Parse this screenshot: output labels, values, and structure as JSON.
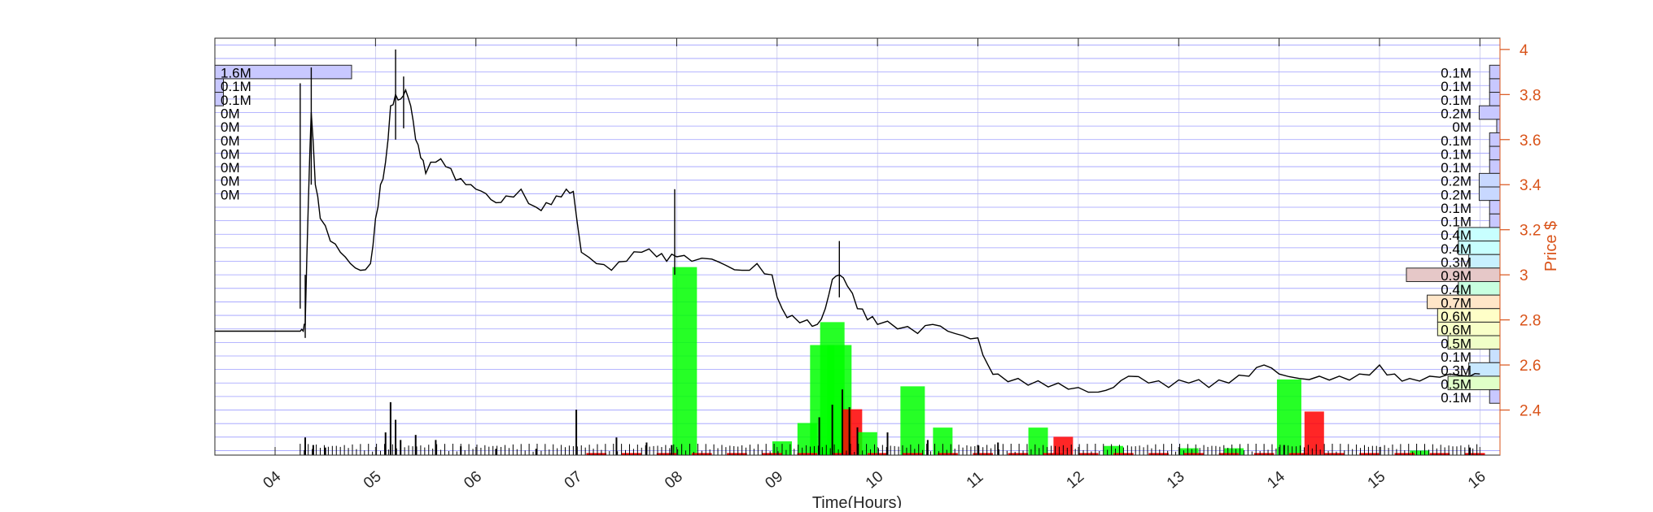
{
  "chart_data": {
    "type": "line",
    "xlabel": "Time(Hours)",
    "ylabel": "Price $",
    "xlim": [
      3.4,
      16.2
    ],
    "ylim": [
      2.2,
      4.05
    ],
    "x_ticks": [
      4,
      5,
      6,
      7,
      8,
      9,
      10,
      11,
      12,
      13,
      14,
      15,
      16
    ],
    "x_tick_labels": [
      "04",
      "05",
      "06",
      "07",
      "08",
      "09",
      "10",
      "11",
      "12",
      "13",
      "14",
      "15",
      "16"
    ],
    "y_ticks": [
      2.4,
      2.6,
      2.8,
      3.0,
      3.2,
      3.4,
      3.6,
      3.8,
      4.0
    ],
    "y_tick_labels": [
      "2.4",
      "2.6",
      "2.8",
      "3",
      "3.2",
      "3.4",
      "3.6",
      "3.8",
      "4"
    ],
    "grid": true,
    "colors": {
      "axis_right": "#d95319",
      "price": "#000000",
      "up_volume": "#00ff00",
      "down_volume": "#ff0000",
      "grid": "#8c8cff"
    },
    "price_series": [
      [
        3.4,
        2.75
      ],
      [
        4.25,
        2.75
      ],
      [
        4.28,
        2.75
      ],
      [
        4.3,
        2.78
      ],
      [
        4.33,
        3.3
      ],
      [
        4.36,
        3.72
      ],
      [
        4.4,
        3.4
      ],
      [
        4.45,
        3.25
      ],
      [
        4.55,
        3.15
      ],
      [
        4.65,
        3.1
      ],
      [
        4.75,
        3.05
      ],
      [
        4.85,
        3.02
      ],
      [
        4.95,
        3.05
      ],
      [
        5.0,
        3.25
      ],
      [
        5.05,
        3.4
      ],
      [
        5.1,
        3.5
      ],
      [
        5.15,
        3.75
      ],
      [
        5.2,
        3.8
      ],
      [
        5.25,
        3.78
      ],
      [
        5.3,
        3.82
      ],
      [
        5.35,
        3.75
      ],
      [
        5.4,
        3.6
      ],
      [
        5.45,
        3.52
      ],
      [
        5.5,
        3.45
      ],
      [
        5.6,
        3.5
      ],
      [
        5.7,
        3.48
      ],
      [
        5.8,
        3.42
      ],
      [
        5.9,
        3.4
      ],
      [
        6.0,
        3.38
      ],
      [
        6.1,
        3.36
      ],
      [
        6.2,
        3.32
      ],
      [
        6.3,
        3.35
      ],
      [
        6.45,
        3.38
      ],
      [
        6.6,
        3.3
      ],
      [
        6.7,
        3.32
      ],
      [
        6.8,
        3.35
      ],
      [
        6.9,
        3.38
      ],
      [
        6.97,
        3.37
      ],
      [
        7.05,
        3.1
      ],
      [
        7.2,
        3.05
      ],
      [
        7.35,
        3.02
      ],
      [
        7.5,
        3.06
      ],
      [
        7.65,
        3.1
      ],
      [
        7.8,
        3.08
      ],
      [
        7.9,
        3.06
      ],
      [
        8.0,
        3.08
      ],
      [
        8.15,
        3.06
      ],
      [
        8.35,
        3.07
      ],
      [
        8.5,
        3.04
      ],
      [
        8.65,
        3.02
      ],
      [
        8.8,
        3.05
      ],
      [
        8.95,
        3.0
      ],
      [
        9.05,
        2.85
      ],
      [
        9.15,
        2.82
      ],
      [
        9.3,
        2.8
      ],
      [
        9.4,
        2.78
      ],
      [
        9.48,
        2.85
      ],
      [
        9.55,
        2.98
      ],
      [
        9.62,
        3.0
      ],
      [
        9.7,
        2.95
      ],
      [
        9.8,
        2.85
      ],
      [
        9.9,
        2.8
      ],
      [
        10.0,
        2.78
      ],
      [
        10.2,
        2.76
      ],
      [
        10.4,
        2.74
      ],
      [
        10.55,
        2.78
      ],
      [
        10.7,
        2.75
      ],
      [
        10.85,
        2.73
      ],
      [
        11.0,
        2.72
      ],
      [
        11.1,
        2.6
      ],
      [
        11.2,
        2.56
      ],
      [
        11.4,
        2.54
      ],
      [
        11.6,
        2.53
      ],
      [
        11.8,
        2.52
      ],
      [
        12.0,
        2.5
      ],
      [
        12.2,
        2.48
      ],
      [
        12.35,
        2.5
      ],
      [
        12.5,
        2.55
      ],
      [
        12.7,
        2.52
      ],
      [
        12.9,
        2.5
      ],
      [
        13.1,
        2.52
      ],
      [
        13.3,
        2.5
      ],
      [
        13.5,
        2.52
      ],
      [
        13.7,
        2.55
      ],
      [
        13.85,
        2.6
      ],
      [
        14.0,
        2.56
      ],
      [
        14.2,
        2.54
      ],
      [
        14.4,
        2.55
      ],
      [
        14.6,
        2.55
      ],
      [
        14.8,
        2.56
      ],
      [
        15.0,
        2.6
      ],
      [
        15.15,
        2.56
      ],
      [
        15.3,
        2.54
      ],
      [
        15.5,
        2.55
      ],
      [
        15.7,
        2.56
      ],
      [
        15.9,
        2.55
      ],
      [
        16.0,
        2.56
      ]
    ],
    "price_spikes": [
      {
        "x": 4.25,
        "low": 2.85,
        "high": 3.85
      },
      {
        "x": 4.3,
        "low": 2.72,
        "high": 3.0
      },
      {
        "x": 4.36,
        "low": 3.4,
        "high": 3.92
      },
      {
        "x": 5.2,
        "low": 3.6,
        "high": 4.0
      },
      {
        "x": 5.28,
        "low": 3.65,
        "high": 3.88
      },
      {
        "x": 7.98,
        "low": 3.0,
        "high": 3.38
      },
      {
        "x": 9.62,
        "low": 2.9,
        "high": 3.15
      }
    ],
    "volume_bars": [
      {
        "x": 8.08,
        "height": 0.82,
        "color": "up"
      },
      {
        "x": 9.05,
        "height": 0.06,
        "color": "up"
      },
      {
        "x": 9.3,
        "height": 0.14,
        "color": "up"
      },
      {
        "x": 9.45,
        "height": 0.48,
        "color": "up"
      },
      {
        "x": 9.55,
        "height": 0.58,
        "color": "up"
      },
      {
        "x": 9.62,
        "height": 0.48,
        "color": "up"
      },
      {
        "x": 9.75,
        "height": 0.2,
        "color": "down"
      },
      {
        "x": 9.9,
        "height": 0.1,
        "color": "up"
      },
      {
        "x": 10.35,
        "height": 0.3,
        "color": "up"
      },
      {
        "x": 10.65,
        "height": 0.12,
        "color": "up"
      },
      {
        "x": 11.6,
        "height": 0.12,
        "color": "up"
      },
      {
        "x": 11.85,
        "height": 0.08,
        "color": "down"
      },
      {
        "x": 12.35,
        "height": 0.04,
        "color": "up"
      },
      {
        "x": 13.1,
        "height": 0.03,
        "color": "up"
      },
      {
        "x": 13.55,
        "height": 0.03,
        "color": "up"
      },
      {
        "x": 14.1,
        "height": 0.33,
        "color": "up"
      },
      {
        "x": 14.35,
        "height": 0.19,
        "color": "down"
      },
      {
        "x": 15.4,
        "height": 0.02,
        "color": "up"
      }
    ],
    "tick_volume_spikes": [
      {
        "x": 4.3,
        "height": 0.14
      },
      {
        "x": 4.38,
        "height": 0.08
      },
      {
        "x": 4.5,
        "height": 0.06
      },
      {
        "x": 5.1,
        "height": 0.18
      },
      {
        "x": 5.15,
        "height": 0.42
      },
      {
        "x": 5.2,
        "height": 0.28
      },
      {
        "x": 5.25,
        "height": 0.12
      },
      {
        "x": 5.4,
        "height": 0.16
      },
      {
        "x": 5.6,
        "height": 0.12
      },
      {
        "x": 5.85,
        "height": 0.07
      },
      {
        "x": 6.2,
        "height": 0.05
      },
      {
        "x": 6.6,
        "height": 0.05
      },
      {
        "x": 7.0,
        "height": 0.36
      },
      {
        "x": 7.4,
        "height": 0.14
      },
      {
        "x": 7.7,
        "height": 0.1
      },
      {
        "x": 7.95,
        "height": 0.08
      },
      {
        "x": 9.42,
        "height": 0.3
      },
      {
        "x": 9.55,
        "height": 0.4
      },
      {
        "x": 9.65,
        "height": 0.52
      },
      {
        "x": 9.72,
        "height": 0.38
      },
      {
        "x": 9.8,
        "height": 0.22
      },
      {
        "x": 10.1,
        "height": 0.18
      },
      {
        "x": 10.5,
        "height": 0.12
      },
      {
        "x": 11.0,
        "height": 0.08
      },
      {
        "x": 11.2,
        "height": 0.1
      },
      {
        "x": 14.05,
        "height": 0.08
      },
      {
        "x": 15.9,
        "height": 0.06
      }
    ],
    "left_profile": {
      "labels": [
        "1.6M",
        "0.1M",
        "0.1M",
        "0M",
        "0M",
        "0M",
        "0M",
        "0M",
        "0M",
        "0M"
      ],
      "values": [
        1.6,
        0.1,
        0.1,
        0,
        0,
        0,
        0,
        0,
        0,
        0
      ],
      "price_levels": [
        3.9,
        3.84,
        3.78,
        3.72,
        3.66,
        3.6,
        3.54,
        3.48,
        3.42,
        3.36
      ],
      "color": "#c8c8ff"
    },
    "right_profile": {
      "labels": [
        "0.1M",
        "0.1M",
        "0.1M",
        "0.2M",
        "0M",
        "0.1M",
        "0.1M",
        "0.1M",
        "0.2M",
        "0.2M",
        "0.1M",
        "0.1M",
        "0.4M",
        "0.4M",
        "0.3M",
        "0.9M",
        "0.4M",
        "0.7M",
        "0.6M",
        "0.6M",
        "0.5M",
        "0.1M",
        "0.3M",
        "0.5M",
        "0.1M"
      ],
      "values": [
        0.1,
        0.1,
        0.1,
        0.2,
        0,
        0.1,
        0.1,
        0.1,
        0.2,
        0.2,
        0.1,
        0.1,
        0.4,
        0.4,
        0.3,
        0.9,
        0.4,
        0.7,
        0.6,
        0.6,
        0.5,
        0.1,
        0.3,
        0.5,
        0.1
      ],
      "price_levels": [
        3.9,
        3.84,
        3.78,
        3.72,
        3.66,
        3.6,
        3.54,
        3.48,
        3.42,
        3.36,
        3.3,
        3.24,
        3.18,
        3.12,
        3.06,
        3.0,
        2.94,
        2.88,
        2.82,
        2.76,
        2.7,
        2.64,
        2.58,
        2.52,
        2.46
      ],
      "colors": [
        "#c8c8ff",
        "#c8c8ff",
        "#c8c8ff",
        "#c8c8ff",
        "#c8c8ff",
        "#c8c8ff",
        "#c8c8ff",
        "#c8c8ff",
        "#c8d8ff",
        "#c8d8ff",
        "#c8c8ff",
        "#c8c8ff",
        "#c8ffff",
        "#c8ffff",
        "#c8f0ff",
        "#e6c8c8",
        "#c8ffe0",
        "#ffe6c8",
        "#ffffc8",
        "#f8ffc8",
        "#f0ffc8",
        "#c8e0ff",
        "#c8e8ff",
        "#e0ffc8",
        "#c8c8ff"
      ]
    }
  }
}
